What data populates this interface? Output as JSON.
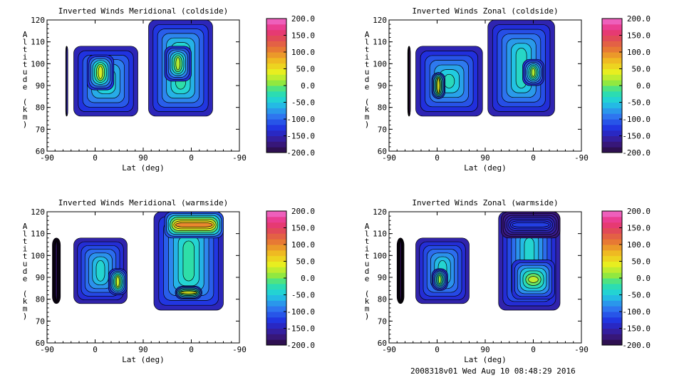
{
  "footer": "2008318v01 Wed Aug 10 08:48:29 2016",
  "chart_data": [
    {
      "type": "heatmap",
      "title": "Inverted Winds Meridional (coldside)",
      "xlabel": "Lat (deg)",
      "ylabel": "Altitude (km)",
      "x_ticks": [
        "-90",
        "0",
        "90",
        "0",
        "-90"
      ],
      "y_ticks": [
        "60",
        "70",
        "80",
        "90",
        "100",
        "110",
        "120"
      ],
      "ylim": [
        60,
        120
      ],
      "colorbar": {
        "labels": [
          "200.0",
          "150.0",
          "100.0",
          "50.0",
          "0.0",
          "-50.0",
          "-100.0",
          "-150.0",
          "-200.0"
        ],
        "range": [
          -200,
          200
        ]
      },
      "blobs": [
        {
          "x": [
            -55,
            -52
          ],
          "y": [
            76,
            108
          ],
          "level": -150
        },
        {
          "x": [
            -40,
            80
          ],
          "y": [
            76,
            108
          ],
          "level": -25
        },
        {
          "x": [
            -15,
            35
          ],
          "y": [
            88,
            104
          ],
          "level": 35
        },
        {
          "x": [
            100,
            220
          ],
          "y": [
            76,
            120
          ],
          "level": -20
        },
        {
          "x": [
            130,
            180
          ],
          "y": [
            92,
            108
          ],
          "level": 20
        }
      ]
    },
    {
      "type": "heatmap",
      "title": "Inverted Winds Zonal (coldside)",
      "xlabel": "Lat (deg)",
      "ylabel": "Altitude (km)",
      "x_ticks": [
        "-90",
        "0",
        "90",
        "0",
        "-90"
      ],
      "y_ticks": [
        "60",
        "70",
        "80",
        "90",
        "100",
        "110",
        "120"
      ],
      "ylim": [
        60,
        120
      ],
      "colorbar": {
        "labels": [
          "200.0",
          "150.0",
          "100.0",
          "50.0",
          "0.0",
          "-50.0",
          "-100.0",
          "-150.0",
          "-200.0"
        ],
        "range": [
          -200,
          200
        ]
      },
      "blobs": [
        {
          "x": [
            -55,
            -50
          ],
          "y": [
            76,
            108
          ],
          "level": -200
        },
        {
          "x": [
            -40,
            85
          ],
          "y": [
            76,
            108
          ],
          "level": -30
        },
        {
          "x": [
            -10,
            15
          ],
          "y": [
            84,
            96
          ],
          "level": 45
        },
        {
          "x": [
            95,
            220
          ],
          "y": [
            76,
            120
          ],
          "level": -35
        },
        {
          "x": [
            160,
            200
          ],
          "y": [
            90,
            102
          ],
          "level": 20
        }
      ]
    },
    {
      "type": "heatmap",
      "title": "Inverted Winds Meridional (warmside)",
      "xlabel": "Lat (deg)",
      "ylabel": "Altitude (km)",
      "x_ticks": [
        "-90",
        "0",
        "90",
        "0",
        "-90"
      ],
      "y_ticks": [
        "60",
        "70",
        "80",
        "90",
        "100",
        "110",
        "120"
      ],
      "ylim": [
        60,
        120
      ],
      "colorbar": {
        "labels": [
          "200.0",
          "150.0",
          "100.0",
          "50.0",
          "0.0",
          "-50.0",
          "-100.0",
          "-150.0",
          "-200.0"
        ],
        "range": [
          -200,
          200
        ]
      },
      "blobs": [
        {
          "x": [
            -80,
            -65
          ],
          "y": [
            78,
            108
          ],
          "level": -180
        },
        {
          "x": [
            -40,
            60
          ],
          "y": [
            78,
            108
          ],
          "level": -40
        },
        {
          "x": [
            25,
            60
          ],
          "y": [
            82,
            94
          ],
          "level": 30
        },
        {
          "x": [
            110,
            240
          ],
          "y": [
            75,
            120
          ],
          "level": -20
        },
        {
          "x": [
            130,
            240
          ],
          "y": [
            108,
            120
          ],
          "level": 100
        },
        {
          "x": [
            150,
            200
          ],
          "y": [
            80,
            86
          ],
          "level": 40
        }
      ]
    },
    {
      "type": "heatmap",
      "title": "Inverted Winds Zonal (warmside)",
      "xlabel": "Lat (deg)",
      "ylabel": "Altitude (km)",
      "x_ticks": [
        "-90",
        "0",
        "90",
        "0",
        "-90"
      ],
      "y_ticks": [
        "60",
        "70",
        "80",
        "90",
        "100",
        "110",
        "120"
      ],
      "ylim": [
        60,
        120
      ],
      "colorbar": {
        "labels": [
          "200.0",
          "150.0",
          "100.0",
          "50.0",
          "0.0",
          "-50.0",
          "-100.0",
          "-150.0",
          "-200.0"
        ],
        "range": [
          -200,
          200
        ]
      },
      "blobs": [
        {
          "x": [
            -75,
            -62
          ],
          "y": [
            78,
            108
          ],
          "level": -190
        },
        {
          "x": [
            -40,
            60
          ],
          "y": [
            78,
            108
          ],
          "level": -40
        },
        {
          "x": [
            -10,
            20
          ],
          "y": [
            84,
            94
          ],
          "level": 10
        },
        {
          "x": [
            115,
            230
          ],
          "y": [
            75,
            120
          ],
          "level": -40
        },
        {
          "x": [
            140,
            220
          ],
          "y": [
            80,
            98
          ],
          "level": 25
        },
        {
          "x": [
            120,
            230
          ],
          "y": [
            108,
            120
          ],
          "level": -120
        }
      ]
    }
  ]
}
